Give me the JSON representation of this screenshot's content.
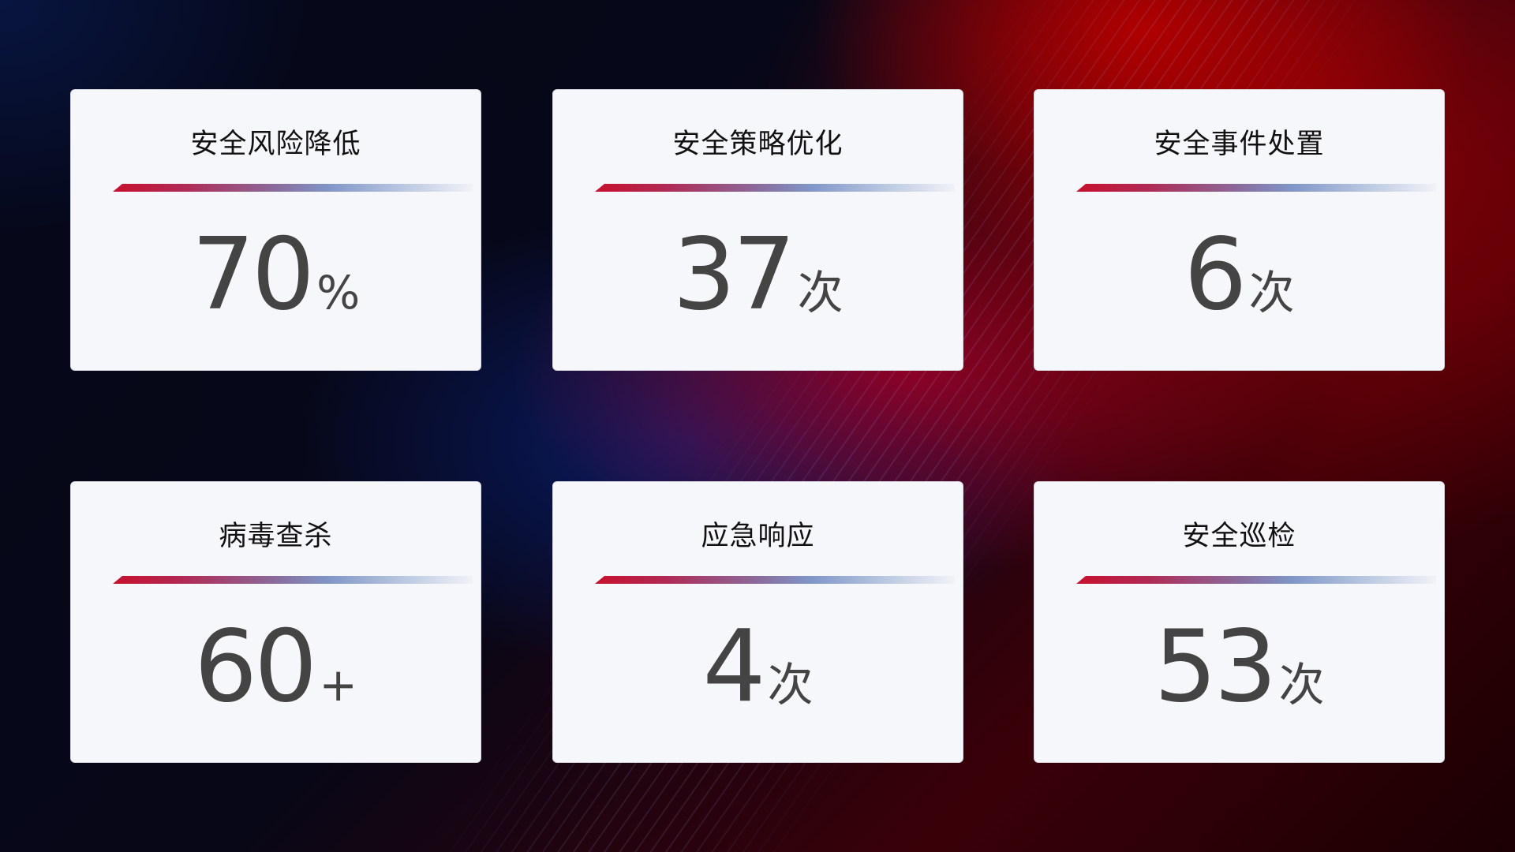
{
  "cards": [
    {
      "title": "安全风险降低",
      "value": "70",
      "unit": "%"
    },
    {
      "title": "安全策略优化",
      "value": "37",
      "unit": "次"
    },
    {
      "title": "安全事件处置",
      "value": "6",
      "unit": "次"
    },
    {
      "title": "病毒查杀",
      "value": "60",
      "unit": "+"
    },
    {
      "title": "应急响应",
      "value": "4",
      "unit": "次"
    },
    {
      "title": "安全巡检",
      "value": "53",
      "unit": "次"
    }
  ],
  "colors": {
    "accent_red": "#c8102e",
    "accent_blue": "#8096c8",
    "card_bg": "#f6f7fb",
    "value_text": "#444444"
  }
}
